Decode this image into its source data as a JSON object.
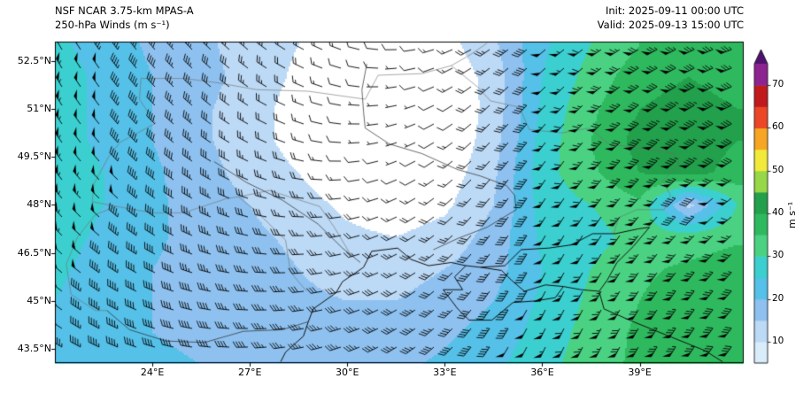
{
  "header": {
    "model_title": "NSF NCAR 3.75-km MPAS-A",
    "field_title": "250-hPa Winds (m s⁻¹)",
    "init_time": "Init: 2025-09-11 00:00 UTC",
    "valid_time": "Valid: 2025-09-13 15:00 UTC"
  },
  "colorbar": {
    "label": "m s⁻¹",
    "ticks": [
      {
        "value": 10,
        "label": "10"
      },
      {
        "value": 20,
        "label": "20"
      },
      {
        "value": 30,
        "label": "30"
      },
      {
        "value": 40,
        "label": "40"
      },
      {
        "value": 50,
        "label": "50"
      },
      {
        "value": 60,
        "label": "60"
      },
      {
        "value": 70,
        "label": "70"
      }
    ],
    "seg_start": 5,
    "seg_step": 5,
    "min_shaded": 10,
    "below_min_color": "#ffffff",
    "segment_colors": [
      "#d9ecfa",
      "#bcd9f5",
      "#8ec1ef",
      "#55c0e8",
      "#3ccfd0",
      "#4ad282",
      "#2fb95e",
      "#22a04b",
      "#96d847",
      "#f2ea3a",
      "#f6a623",
      "#ec4627",
      "#c01a1d",
      "#8d2390"
    ],
    "over_color": "#4f136e"
  },
  "chart_data": {
    "type": "heatmap",
    "variable": "250-hPa wind speed with wind barbs",
    "units": "m s⁻¹",
    "lon_range": [
      21.0,
      42.2
    ],
    "lat_range": [
      43.06,
      53.1
    ],
    "lat_ticks": [
      {
        "value": 52.5,
        "label": "52.5°N"
      },
      {
        "value": 51.0,
        "label": "51°N"
      },
      {
        "value": 49.5,
        "label": "49.5°N"
      },
      {
        "value": 48.0,
        "label": "48°N"
      },
      {
        "value": 46.5,
        "label": "46.5°N"
      },
      {
        "value": 45.0,
        "label": "45°N"
      },
      {
        "value": 43.5,
        "label": "43.5°N"
      }
    ],
    "lon_ticks": [
      {
        "value": 24,
        "label": "24°E"
      },
      {
        "value": 27,
        "label": "27°E"
      },
      {
        "value": 30,
        "label": "30°E"
      },
      {
        "value": 33,
        "label": "33°E"
      },
      {
        "value": 36,
        "label": "36°E"
      },
      {
        "value": 39,
        "label": "39°E"
      }
    ],
    "grid_lons": [
      21,
      22.5,
      24,
      25.5,
      27,
      28.5,
      30,
      31.5,
      33,
      34.5,
      36,
      37.5,
      39,
      40.5,
      42
    ],
    "grid_lats": [
      53,
      52,
      51,
      50,
      49,
      48,
      47,
      46,
      45,
      44,
      43
    ],
    "speed": [
      [
        26,
        23,
        19,
        16,
        13,
        10,
        7,
        5,
        8,
        14,
        24,
        30,
        35,
        38,
        36
      ],
      [
        27,
        24,
        20,
        17,
        13,
        9,
        5,
        3,
        6,
        12,
        25,
        32,
        38,
        40,
        38
      ],
      [
        27,
        24,
        20,
        16,
        12,
        8,
        4,
        2,
        5,
        12,
        26,
        34,
        40,
        42,
        40
      ],
      [
        27,
        24,
        20,
        16,
        12,
        8,
        4,
        2,
        5,
        13,
        27,
        35,
        42,
        43,
        40
      ],
      [
        28,
        25,
        21,
        17,
        13,
        10,
        6,
        4,
        7,
        14,
        28,
        34,
        40,
        42,
        38
      ],
      [
        28,
        25,
        21,
        18,
        15,
        12,
        9,
        7,
        9,
        15,
        27,
        30,
        34,
        13,
        30
      ],
      [
        27,
        24,
        21,
        18,
        16,
        14,
        11,
        10,
        12,
        17,
        26,
        28,
        32,
        32,
        34
      ],
      [
        26,
        23,
        20,
        18,
        17,
        15,
        13,
        13,
        15,
        18,
        25,
        30,
        34,
        36,
        38
      ],
      [
        25,
        22,
        20,
        19,
        18,
        16,
        15,
        15,
        17,
        20,
        26,
        31,
        35,
        38,
        40
      ],
      [
        24,
        22,
        20,
        19,
        18,
        18,
        17,
        17,
        19,
        22,
        27,
        32,
        36,
        38,
        40
      ],
      [
        24,
        22,
        21,
        20,
        20,
        19,
        19,
        19,
        21,
        24,
        28,
        33,
        36,
        38,
        40
      ]
    ],
    "direction_from": [
      [
        330,
        325,
        320,
        315,
        310,
        300,
        290,
        270,
        250,
        235,
        230,
        235,
        240,
        245,
        250
      ],
      [
        330,
        325,
        318,
        312,
        306,
        296,
        284,
        264,
        244,
        230,
        226,
        230,
        236,
        242,
        248
      ],
      [
        328,
        322,
        316,
        310,
        302,
        292,
        278,
        258,
        240,
        226,
        222,
        226,
        232,
        238,
        244
      ],
      [
        326,
        320,
        314,
        306,
        298,
        288,
        272,
        252,
        236,
        222,
        218,
        222,
        228,
        234,
        240
      ],
      [
        324,
        318,
        310,
        302,
        294,
        282,
        266,
        248,
        232,
        220,
        215,
        218,
        224,
        230,
        236
      ],
      [
        320,
        314,
        306,
        298,
        288,
        276,
        262,
        246,
        230,
        218,
        212,
        215,
        220,
        226,
        232
      ],
      [
        316,
        310,
        302,
        292,
        282,
        270,
        258,
        244,
        230,
        216,
        210,
        212,
        217,
        222,
        228
      ],
      [
        312,
        306,
        297,
        287,
        277,
        267,
        256,
        243,
        229,
        215,
        208,
        210,
        214,
        219,
        224
      ],
      [
        308,
        301,
        292,
        283,
        273,
        264,
        254,
        242,
        228,
        214,
        207,
        208,
        212,
        216,
        221
      ],
      [
        304,
        297,
        288,
        279,
        270,
        261,
        252,
        240,
        227,
        213,
        206,
        207,
        210,
        214,
        218
      ],
      [
        300,
        293,
        285,
        276,
        267,
        259,
        250,
        239,
        226,
        212,
        205,
        206,
        209,
        212,
        216
      ]
    ],
    "barb_convention": {
      "half": 2.5,
      "full": 5,
      "flag": 25,
      "calm_below": 2.5
    }
  },
  "map_layers": {
    "coastlines": [
      [
        [
          28.8,
          44.35
        ],
        [
          28.95,
          44.75
        ],
        [
          29.65,
          45.25
        ],
        [
          29.85,
          45.6
        ],
        [
          30.5,
          46.05
        ],
        [
          30.75,
          46.55
        ],
        [
          31.55,
          46.65
        ],
        [
          31.95,
          46.3
        ],
        [
          32.5,
          46.1
        ],
        [
          33.2,
          46.2
        ],
        [
          33.65,
          46.1
        ],
        [
          34.1,
          46.05
        ],
        [
          34.85,
          46.1
        ],
        [
          35.05,
          46.3
        ],
        [
          35.35,
          46.6
        ],
        [
          36.2,
          46.65
        ],
        [
          36.9,
          46.75
        ],
        [
          37.55,
          47.1
        ],
        [
          38.25,
          47.1
        ],
        [
          38.95,
          47.25
        ],
        [
          39.3,
          47.3
        ]
      ],
      [
        [
          33.65,
          46.1
        ],
        [
          33.3,
          45.75
        ],
        [
          33.55,
          45.35
        ],
        [
          32.95,
          45.35
        ],
        [
          33.4,
          44.75
        ],
        [
          33.75,
          44.4
        ],
        [
          34.45,
          44.4
        ],
        [
          35.1,
          44.95
        ],
        [
          35.8,
          45.0
        ],
        [
          36.4,
          45.1
        ],
        [
          36.65,
          45.45
        ],
        [
          36.1,
          45.5
        ],
        [
          35.45,
          45.3
        ],
        [
          35.05,
          45.65
        ],
        [
          34.75,
          45.95
        ],
        [
          34.1,
          46.05
        ]
      ],
      [
        [
          36.65,
          45.45
        ],
        [
          37.2,
          45.35
        ],
        [
          37.75,
          45.3
        ],
        [
          38.0,
          45.65
        ],
        [
          38.3,
          46.2
        ],
        [
          38.8,
          46.7
        ],
        [
          39.3,
          47.3
        ]
      ],
      [
        [
          37.75,
          45.3
        ],
        [
          37.9,
          44.75
        ],
        [
          38.8,
          44.35
        ],
        [
          39.9,
          43.9
        ],
        [
          41.0,
          43.45
        ],
        [
          41.55,
          43.1
        ]
      ],
      [
        [
          28.8,
          44.35
        ],
        [
          28.65,
          43.9
        ],
        [
          28.1,
          43.4
        ],
        [
          27.95,
          43.1
        ]
      ]
    ],
    "rivers": [
      [
        [
          30.6,
          52.4
        ],
        [
          30.45,
          51.6
        ],
        [
          30.5,
          50.9
        ],
        [
          30.55,
          50.4
        ],
        [
          31.3,
          49.9
        ],
        [
          32.3,
          49.6
        ],
        [
          33.4,
          49.1
        ],
        [
          34.1,
          48.9
        ],
        [
          34.9,
          48.6
        ],
        [
          35.15,
          48.3
        ],
        [
          35.2,
          47.85
        ],
        [
          34.3,
          47.3
        ],
        [
          33.4,
          46.95
        ],
        [
          32.65,
          46.6
        ]
      ],
      [
        [
          22.6,
          44.7
        ],
        [
          23.3,
          44.1
        ],
        [
          24.4,
          43.75
        ],
        [
          25.6,
          43.7
        ],
        [
          26.8,
          44.05
        ],
        [
          28.0,
          44.1
        ],
        [
          28.8,
          44.35
        ]
      ],
      [
        [
          25.9,
          49.35
        ],
        [
          26.9,
          48.7
        ],
        [
          28.0,
          48.15
        ],
        [
          29.1,
          47.4
        ],
        [
          29.85,
          46.65
        ],
        [
          30.4,
          46.2
        ]
      ]
    ],
    "borders": [
      [
        [
          23.65,
          51.95
        ],
        [
          25.0,
          51.95
        ],
        [
          26.1,
          51.8
        ],
        [
          27.2,
          51.6
        ],
        [
          28.8,
          51.55
        ],
        [
          30.55,
          51.3
        ],
        [
          30.95,
          52.05
        ],
        [
          32.3,
          52.1
        ],
        [
          33.2,
          52.35
        ],
        [
          34.05,
          51.65
        ],
        [
          34.4,
          51.25
        ]
      ],
      [
        [
          34.4,
          51.25
        ],
        [
          35.3,
          51.05
        ],
        [
          35.6,
          50.35
        ],
        [
          36.6,
          50.25
        ],
        [
          37.45,
          50.4
        ],
        [
          38.05,
          49.9
        ],
        [
          39.2,
          49.75
        ],
        [
          40.05,
          49.6
        ],
        [
          40.2,
          49.25
        ],
        [
          39.7,
          48.75
        ],
        [
          39.95,
          48.3
        ],
        [
          39.75,
          47.85
        ],
        [
          38.9,
          47.85
        ],
        [
          38.35,
          47.6
        ],
        [
          38.2,
          47.1
        ]
      ],
      [
        [
          23.65,
          51.95
        ],
        [
          23.6,
          51.3
        ],
        [
          24.1,
          50.55
        ],
        [
          23.0,
          49.95
        ],
        [
          22.65,
          49.5
        ],
        [
          22.2,
          48.65
        ],
        [
          22.15,
          48.1
        ],
        [
          22.9,
          47.95
        ],
        [
          24.0,
          47.75
        ],
        [
          24.95,
          47.75
        ],
        [
          26.3,
          48.2
        ],
        [
          26.65,
          48.25
        ]
      ],
      [
        [
          26.65,
          48.25
        ],
        [
          27.2,
          47.8
        ],
        [
          28.1,
          46.9
        ],
        [
          28.25,
          45.9
        ],
        [
          28.75,
          45.3
        ]
      ],
      [
        [
          26.65,
          48.25
        ],
        [
          27.6,
          48.45
        ],
        [
          29.15,
          47.95
        ],
        [
          29.6,
          47.3
        ],
        [
          30.1,
          46.45
        ]
      ],
      [
        [
          22.9,
          47.95
        ],
        [
          22.25,
          47.7
        ],
        [
          21.7,
          47.0
        ],
        [
          21.35,
          46.15
        ],
        [
          21.5,
          45.2
        ],
        [
          22.25,
          44.7
        ],
        [
          22.6,
          44.7
        ]
      ],
      [
        [
          33.2,
          52.35
        ],
        [
          33.8,
          52.7
        ],
        [
          34.3,
          53.05
        ]
      ]
    ]
  }
}
